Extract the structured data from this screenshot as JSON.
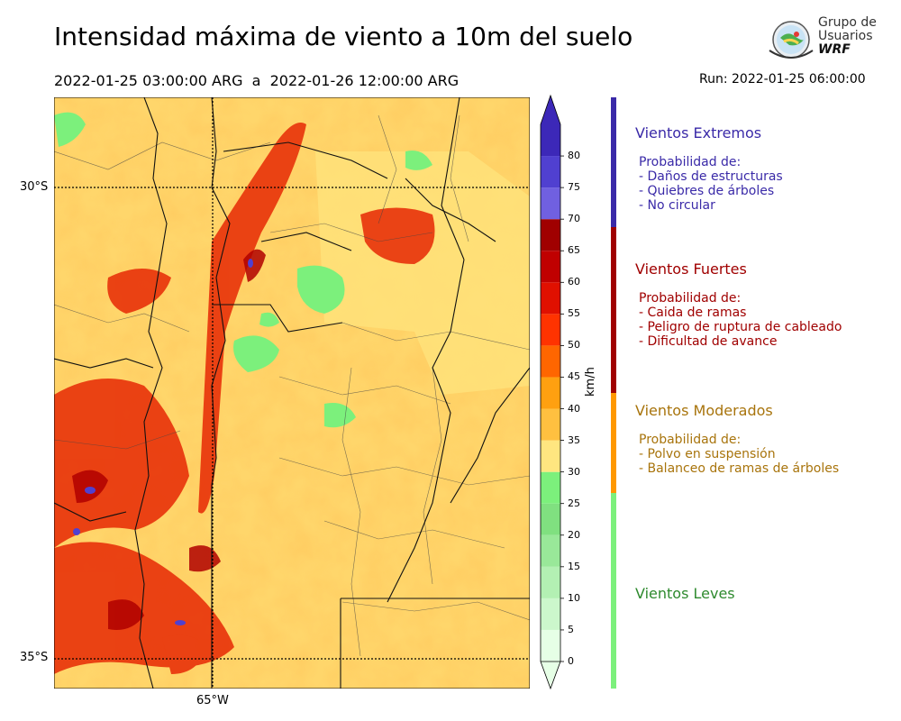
{
  "header": {
    "title": "Intensidad máxima de viento a 10m del suelo",
    "period": "2022-01-25 03:00:00 ARG  a  2022-01-26 12:00:00 ARG",
    "run": "Run: 2022-01-25 06:00:00"
  },
  "logo": {
    "line1": "Grupo de",
    "line2": "Usuarios",
    "line3": "WRF"
  },
  "map": {
    "lat_labels": [
      "30°S",
      "35°S"
    ],
    "lon_labels": [
      "65°W"
    ]
  },
  "colorbar": {
    "unit": "km/h",
    "ticks": [
      "0",
      "5",
      "10",
      "15",
      "20",
      "25",
      "30",
      "35",
      "40",
      "45",
      "50",
      "55",
      "60",
      "65",
      "70",
      "75",
      "80"
    ],
    "colors": [
      "#e6ffe6",
      "#ccf7cc",
      "#b3f0b3",
      "#99e899",
      "#80e080",
      "#7cf07c",
      "#ffe680",
      "#ffc040",
      "#ffa010",
      "#ff6600",
      "#ff3300",
      "#e01000",
      "#c00000",
      "#a00000",
      "#7060e0",
      "#5040d0",
      "#3c28b8"
    ]
  },
  "categories": [
    {
      "title": "Vientos Extremos",
      "color": "#3a2aa8",
      "prob_heading": "Probabilidad de:",
      "items": [
        "- Daños de estructuras",
        "- Quiebres de árboles",
        "- No circular"
      ]
    },
    {
      "title": "Vientos Fuertes",
      "color": "#a00000",
      "prob_heading": "Probabilidad de:",
      "items": [
        "- Caida de ramas",
        "- Peligro de ruptura de cableado",
        "- Dificultad de avance"
      ]
    },
    {
      "title": "Vientos Moderados",
      "color": "#a8740c",
      "prob_heading": "Probabilidad de:",
      "items": [
        "- Polvo en suspensión",
        "- Balanceo de ramas de árboles"
      ]
    },
    {
      "title": "Vientos Leves",
      "color": "#2e8a2e"
    }
  ],
  "category_bar_colors": [
    "#3a2aa8",
    "#a00000",
    "#ff9800",
    "#7cf07c"
  ]
}
